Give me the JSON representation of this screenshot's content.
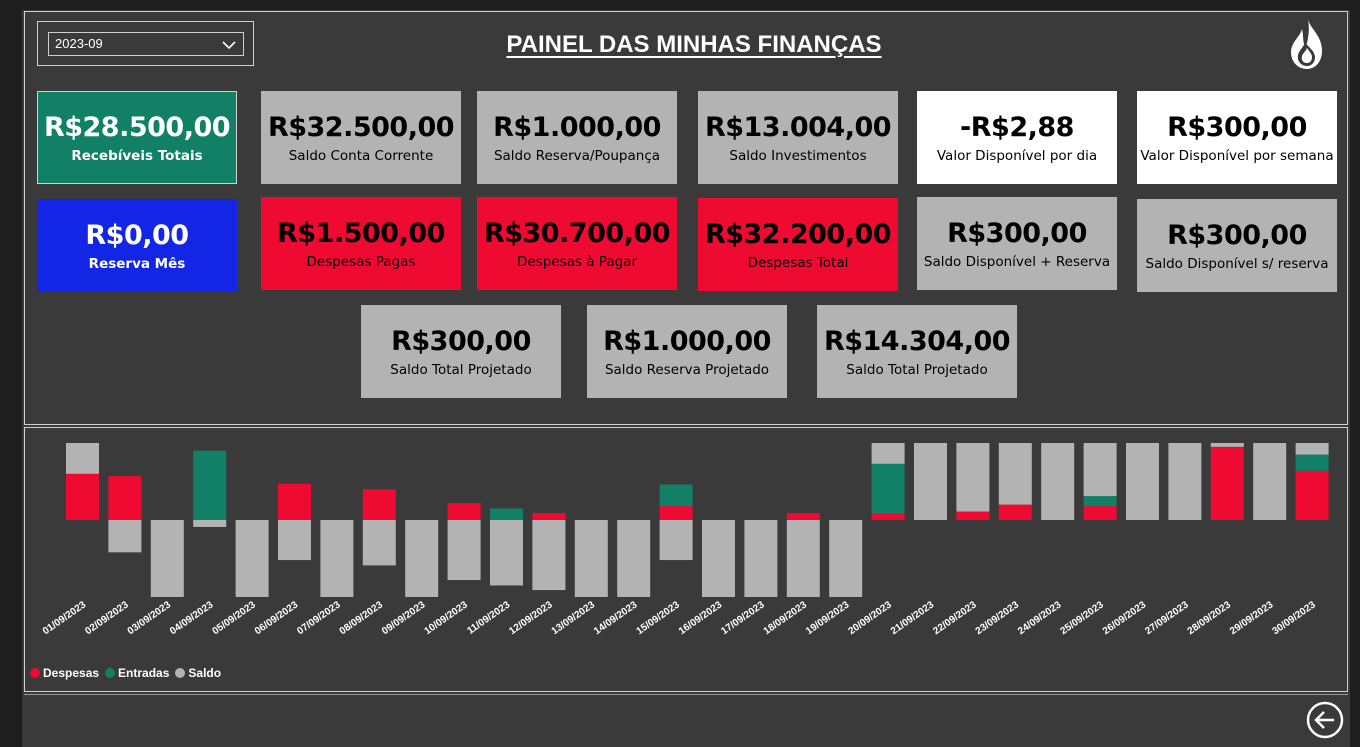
{
  "header": {
    "title": "PAINEL DAS MINHAS FINANÇAS",
    "period_value": "2023-09"
  },
  "cards_row1": [
    {
      "value": "R$28.500,00",
      "label": "Recebíveis Totais"
    },
    {
      "value": "R$32.500,00",
      "label": "Saldo Conta Corrente"
    },
    {
      "value": "R$1.000,00",
      "label": "Saldo Reserva/Poupança"
    },
    {
      "value": "R$13.004,00",
      "label": "Saldo Investimentos"
    },
    {
      "value": "-R$2,88",
      "label": "Valor Disponível por dia"
    },
    {
      "value": "R$300,00",
      "label": "Valor Disponível por semana"
    }
  ],
  "cards_row2": [
    {
      "value": "R$0,00",
      "label": "Reserva Mês"
    },
    {
      "value": "R$1.500,00",
      "label": "Despesas Pagas"
    },
    {
      "value": "R$30.700,00",
      "label": "Despesas à Pagar"
    },
    {
      "value": "R$32.200,00",
      "label": "Despesas Total"
    },
    {
      "value": "R$300,00",
      "label": "Saldo Disponível + Reserva"
    },
    {
      "value": "R$300,00",
      "label": "Saldo Disponível s/ reserva"
    }
  ],
  "cards_row3": [
    {
      "value": "R$300,00",
      "label": "Saldo Total Projetado"
    },
    {
      "value": "R$1.000,00",
      "label": "Saldo Reserva Projetado"
    },
    {
      "value": "R$14.304,00",
      "label": "Saldo Total Projetado"
    }
  ],
  "colors": {
    "despesas": "#ef0a32",
    "entradas": "#128066",
    "saldo": "#b3b3b3"
  },
  "icons": {
    "logo": "flame-icon",
    "back": "arrow-left-circle-icon",
    "dropdown": "chevron-down-icon"
  },
  "chart_data": {
    "type": "bar",
    "stacked": true,
    "grid": false,
    "legend_position": "bottom-left",
    "ylim": [
      -100,
      100
    ],
    "categories": [
      "01/09/2023",
      "02/09/2023",
      "03/09/2023",
      "04/09/2023",
      "05/09/2023",
      "06/09/2023",
      "07/09/2023",
      "08/09/2023",
      "09/09/2023",
      "10/09/2023",
      "11/09/2023",
      "12/09/2023",
      "13/09/2023",
      "14/09/2023",
      "15/09/2023",
      "16/09/2023",
      "17/09/2023",
      "18/09/2023",
      "19/09/2023",
      "20/09/2023",
      "21/09/2023",
      "22/09/2023",
      "23/09/2023",
      "24/09/2023",
      "25/09/2023",
      "26/09/2023",
      "27/09/2023",
      "28/09/2023",
      "29/09/2023",
      "30/09/2023"
    ],
    "series": [
      {
        "name": "Despesas",
        "values": [
          60,
          57,
          0,
          0,
          0,
          47,
          0,
          40,
          0,
          22,
          0,
          9,
          0,
          0,
          18,
          0,
          0,
          9,
          0,
          8,
          0,
          11,
          20,
          0,
          18,
          0,
          0,
          95,
          0,
          64
        ]
      },
      {
        "name": "Entradas",
        "values": [
          0,
          0,
          0,
          90,
          0,
          0,
          0,
          0,
          0,
          0,
          15,
          0,
          0,
          0,
          28,
          0,
          0,
          0,
          0,
          65,
          0,
          0,
          0,
          0,
          13,
          0,
          0,
          0,
          0,
          21
        ]
      },
      {
        "name": "Saldo",
        "values": [
          40,
          -42,
          -100,
          -9,
          -100,
          -52,
          -100,
          -59,
          -100,
          -78,
          -85,
          -91,
          -100,
          -100,
          -52,
          -100,
          -100,
          -100,
          -100,
          27,
          100,
          89,
          80,
          100,
          69,
          100,
          100,
          5,
          100,
          15
        ]
      }
    ]
  }
}
